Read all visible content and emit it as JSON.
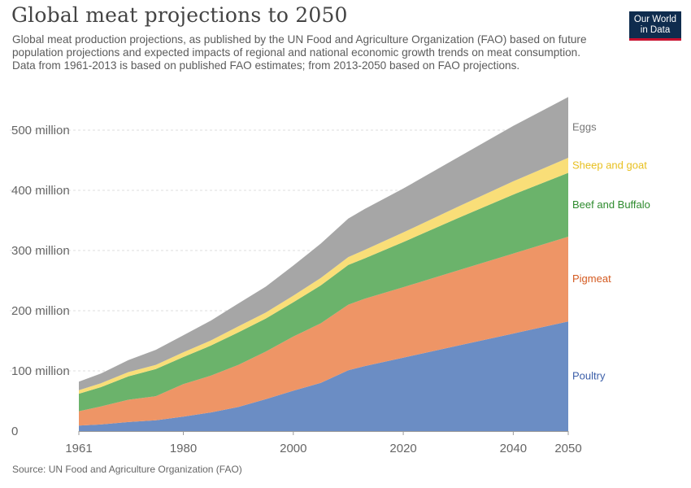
{
  "header": {
    "title": "Global meat projections to 2050",
    "subtitle": "Global meat production projections, as published by the UN Food and Agriculture Organization (FAO) based on future population projections and expected impacts of regional and national economic growth trends on meat consumption. Data from 1961-2013 is based on published FAO estimates; from 2013-2050 based on FAO projections.",
    "logo_line1": "Our World",
    "logo_line2": "in Data"
  },
  "footer": {
    "source": "Source: UN Food and Agriculture Organization (FAO)"
  },
  "chart_data": {
    "type": "area",
    "stacked": true,
    "x": [
      1961,
      1965,
      1970,
      1975,
      1980,
      1985,
      1990,
      1995,
      2000,
      2005,
      2010,
      2013,
      2020,
      2030,
      2040,
      2050
    ],
    "xticks": [
      1961,
      1980,
      2000,
      2020,
      2040,
      2050
    ],
    "xtick_labels": [
      "1961",
      "1980",
      "2000",
      "2020",
      "2040",
      "2050"
    ],
    "yticks": [
      0,
      100000000,
      200000000,
      300000000,
      400000000,
      500000000
    ],
    "ytick_labels": [
      "0",
      "100 million",
      "200 million",
      "300 million",
      "400 million",
      "500 million"
    ],
    "ylim": [
      0,
      550000000
    ],
    "grid": "horizontal dashed",
    "legend": "labels at right end of series",
    "series": [
      {
        "name": "Poultry",
        "color": "#6b8dc4",
        "label_color": "#3b5ea8",
        "values": [
          9000000,
          11000000,
          15000000,
          18000000,
          24000000,
          31000000,
          40000000,
          53000000,
          67000000,
          80000000,
          101000000,
          108000000,
          122000000,
          142000000,
          162000000,
          182000000
        ]
      },
      {
        "name": "Pigmeat",
        "color": "#ee9566",
        "label_color": "#d45a20",
        "values": [
          24000000,
          30000000,
          37000000,
          40000000,
          54000000,
          61000000,
          70000000,
          79000000,
          90000000,
          99000000,
          109000000,
          112000000,
          117000000,
          125000000,
          133000000,
          141000000
        ]
      },
      {
        "name": "Beef and Buffalo",
        "color": "#6bb36b",
        "label_color": "#2e8b2e",
        "values": [
          29000000,
          32000000,
          39000000,
          45000000,
          45000000,
          50000000,
          54000000,
          55000000,
          57000000,
          63000000,
          66000000,
          67000000,
          75000000,
          87000000,
          98000000,
          106000000
        ]
      },
      {
        "name": "Sheep and goat",
        "color": "#f9de78",
        "label_color": "#e8c020",
        "values": [
          6000000,
          6500000,
          7000000,
          7000000,
          8000000,
          8500000,
          10000000,
          10000000,
          11000000,
          12500000,
          13000000,
          14000000,
          16000000,
          19000000,
          22000000,
          25000000
        ]
      },
      {
        "name": "Eggs",
        "color": "#a6a6a6",
        "label_color": "#777777",
        "values": [
          14000000,
          16000000,
          20000000,
          25000000,
          28000000,
          33000000,
          38000000,
          43000000,
          50000000,
          57000000,
          64000000,
          68000000,
          73000000,
          82000000,
          92000000,
          101000000
        ]
      }
    ]
  }
}
